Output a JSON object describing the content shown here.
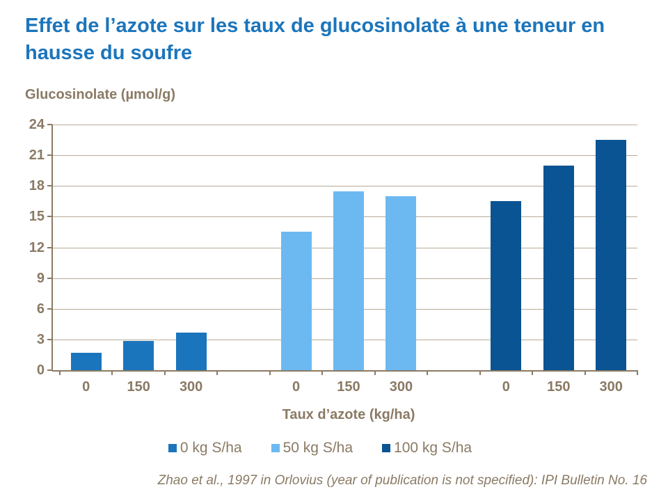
{
  "caption": "Zhao et al., 1997 in Orlovius (year of publication is not specified): IPI Bulletin No. 16",
  "colors": {
    "title_blue": "#1B75BC",
    "text_brown": "#8A7A64",
    "gridline": "#B7AA97",
    "axis": "#8A7A64",
    "background": "#FFFFFF"
  },
  "chart_data": {
    "type": "bar",
    "title": "Effet de l’azote sur les taux de glucosinolate à une teneur en hausse du soufre",
    "ylabel_title": "Glucosinolate (µmol/g)",
    "xlabel": "Taux d’azote (kg/ha)",
    "categories": [
      "0",
      "150",
      "300"
    ],
    "series": [
      {
        "name": "0 kg S/ha",
        "color": "#1B75BC",
        "values": [
          1.7,
          2.85,
          3.65
        ]
      },
      {
        "name": "50 kg S/ha",
        "color": "#6CB9F2",
        "values": [
          13.5,
          17.5,
          17.0
        ]
      },
      {
        "name": "100 kg S/ha",
        "color": "#0A5493",
        "values": [
          16.5,
          20.0,
          22.5
        ]
      }
    ],
    "ylim": [
      0,
      24
    ],
    "ystep": 3,
    "yticks": [
      "0",
      "3",
      "6",
      "9",
      "12",
      "15",
      "18",
      "21",
      "24"
    ],
    "grid": true,
    "legend_position": "bottom"
  }
}
